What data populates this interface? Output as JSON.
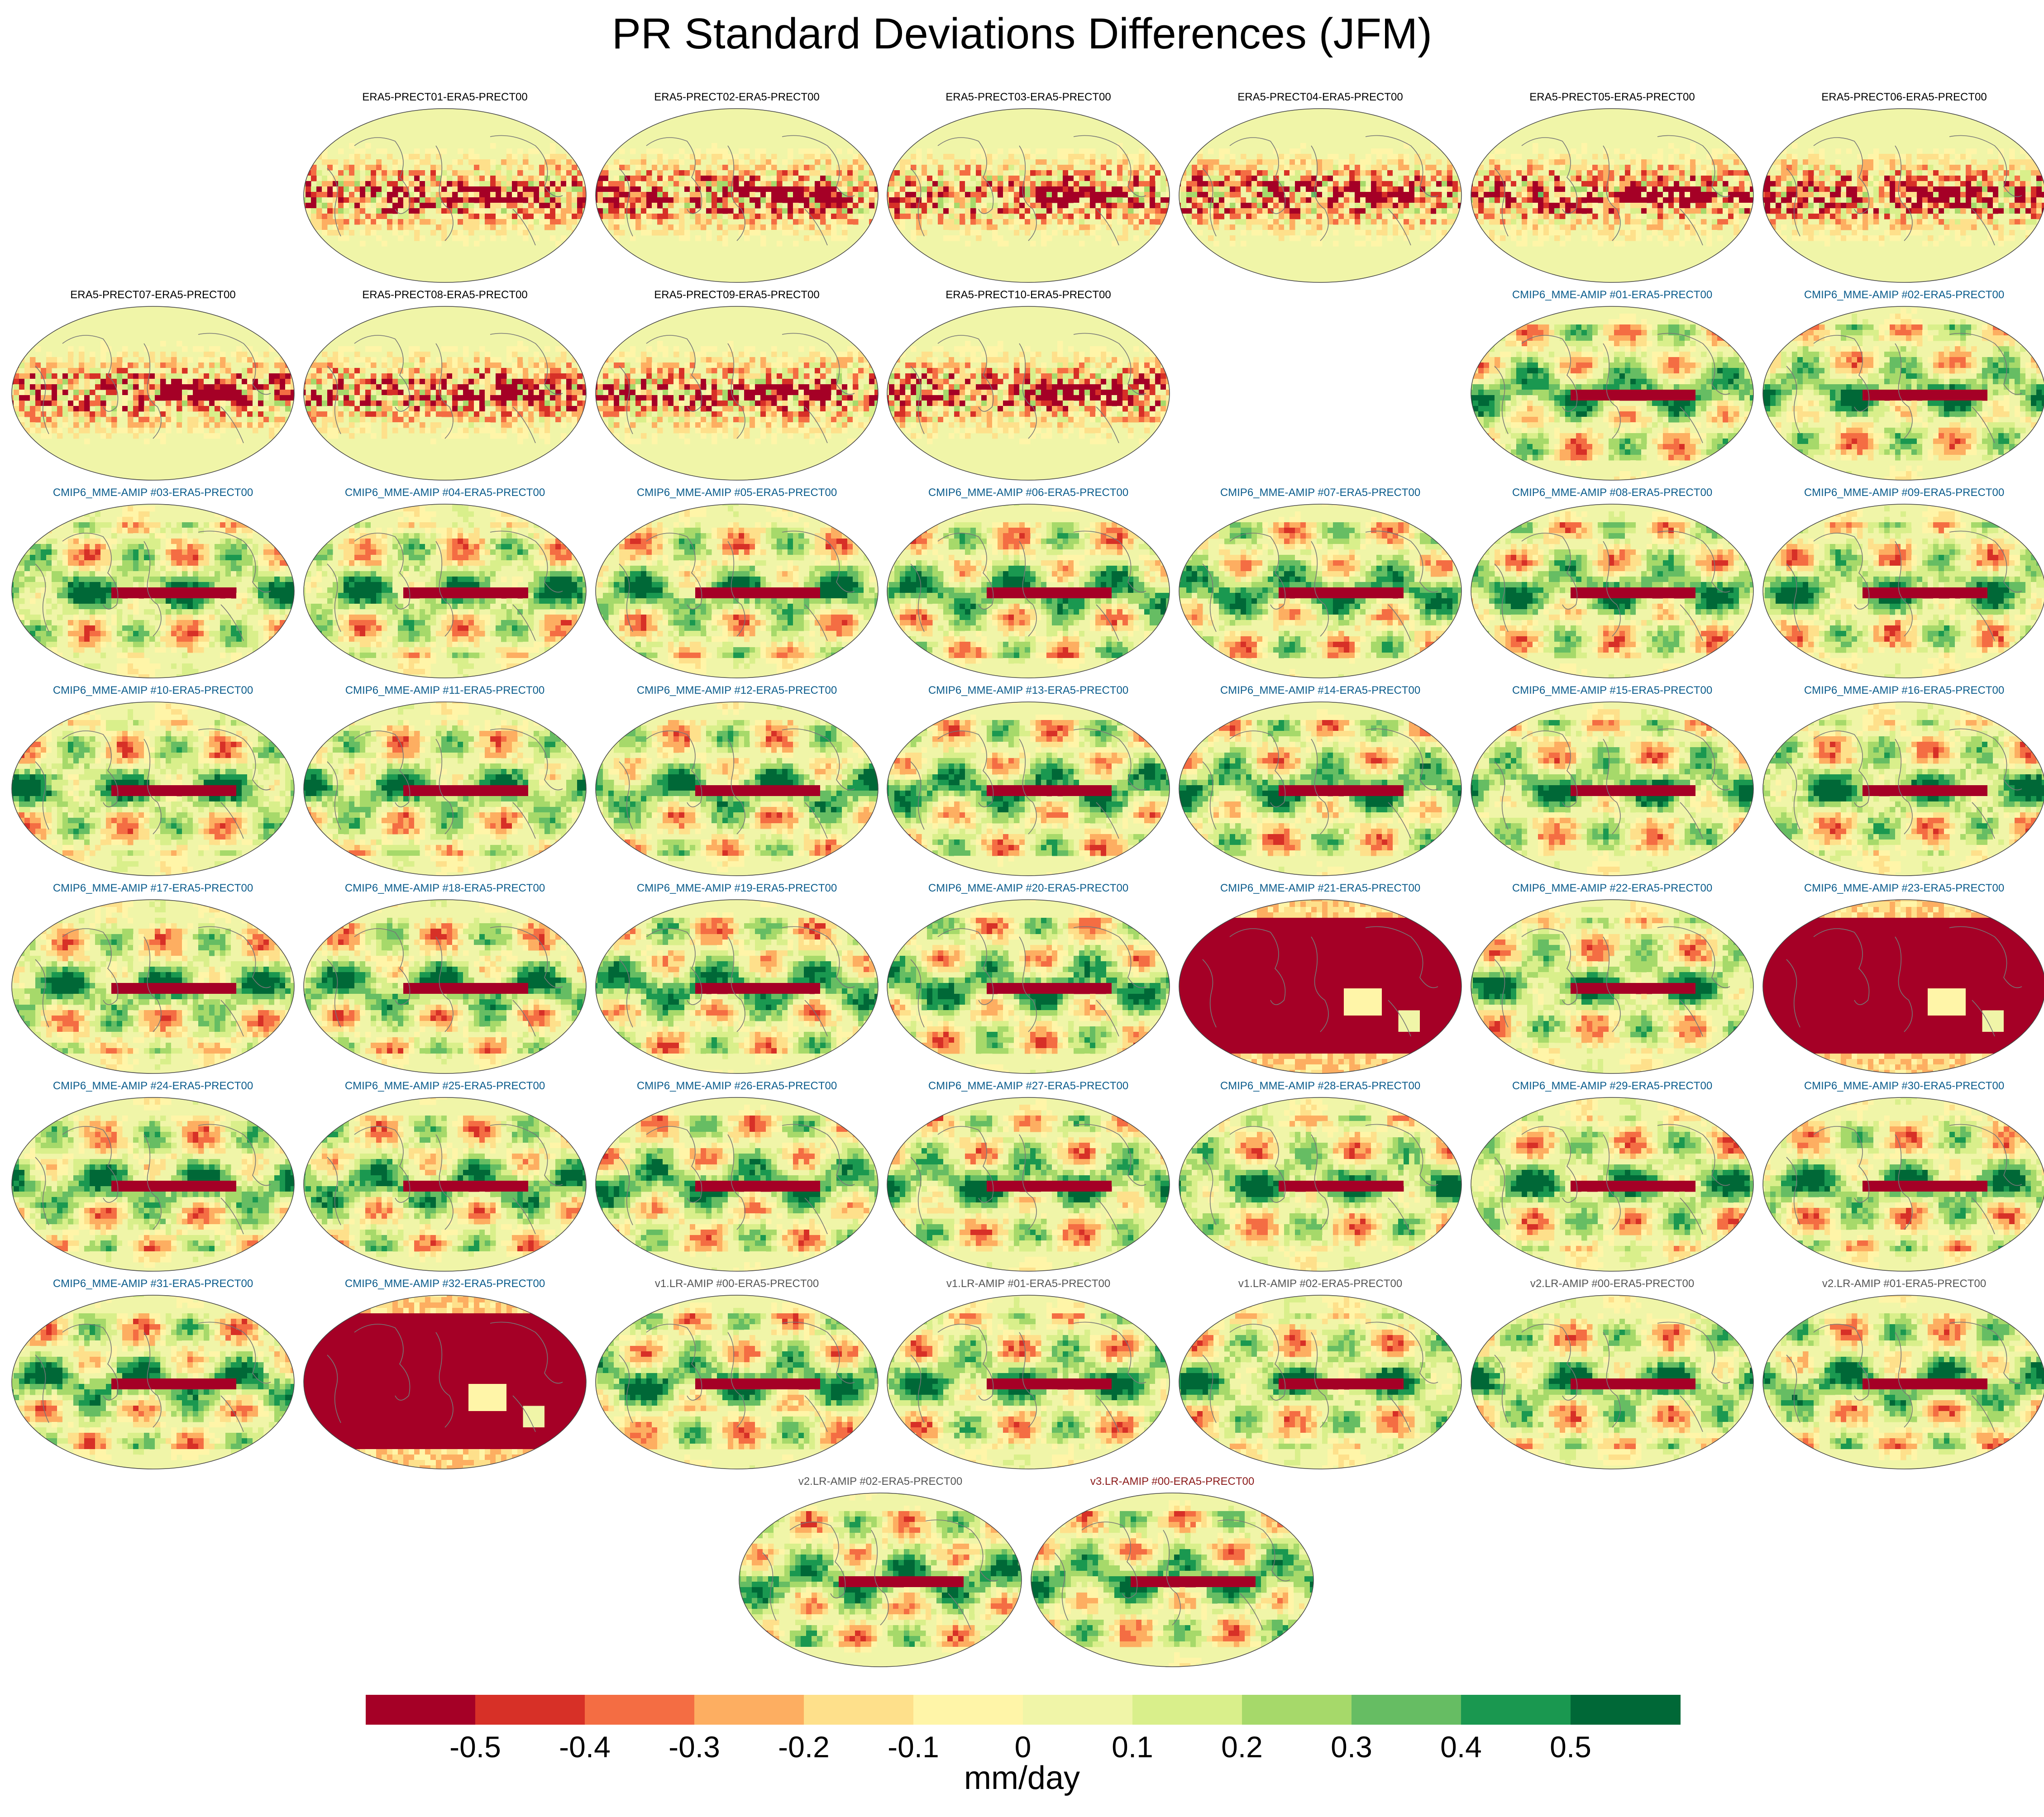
{
  "title": "PR Standard Deviations Differences (JFM)",
  "colors": {
    "era5_title": "#000000",
    "cmip6_title": "#0b5c8c",
    "v1_title": "#555555",
    "v2_title": "#555555",
    "v3_title": "#8b1a1a"
  },
  "chart_data": {
    "type": "map-panels",
    "variable": "PR",
    "season": "JFM",
    "units": "mm/day",
    "colorbar": {
      "levels": [
        -0.5,
        -0.4,
        -0.3,
        -0.2,
        -0.1,
        0,
        0.1,
        0.2,
        0.3,
        0.4,
        0.5
      ],
      "tick_labels": [
        "-0.5",
        "-0.4",
        "-0.3",
        "-0.2",
        "-0.1",
        "0",
        "0.1",
        "0.2",
        "0.3",
        "0.4",
        "0.5"
      ],
      "colors": [
        "#a50026",
        "#d73027",
        "#f46d43",
        "#fdae61",
        "#fee08b",
        "#fff5a8",
        "#f0f5a8",
        "#d9ef8b",
        "#a6d96a",
        "#66bd63",
        "#1a9850",
        "#006837"
      ],
      "label": "mm/day"
    },
    "panels": [
      {
        "title": "ERA5-PRECT01-ERA5-PRECT00",
        "group": "era5",
        "bias": 0
      },
      {
        "title": "ERA5-PRECT02-ERA5-PRECT00",
        "group": "era5",
        "bias": 0
      },
      {
        "title": "ERA5-PRECT03-ERA5-PRECT00",
        "group": "era5",
        "bias": 0
      },
      {
        "title": "ERA5-PRECT04-ERA5-PRECT00",
        "group": "era5",
        "bias": 0
      },
      {
        "title": "ERA5-PRECT05-ERA5-PRECT00",
        "group": "era5",
        "bias": 0
      },
      {
        "title": "ERA5-PRECT06-ERA5-PRECT00",
        "group": "era5",
        "bias": 0
      },
      {
        "title": "ERA5-PRECT07-ERA5-PRECT00",
        "group": "era5",
        "bias": 0
      },
      {
        "title": "ERA5-PRECT08-ERA5-PRECT00",
        "group": "era5",
        "bias": 0
      },
      {
        "title": "ERA5-PRECT09-ERA5-PRECT00",
        "group": "era5",
        "bias": 0
      },
      {
        "title": "ERA5-PRECT10-ERA5-PRECT00",
        "group": "era5",
        "bias": 0
      },
      {
        "title": "CMIP6_MME-AMIP  #01-ERA5-PRECT00",
        "group": "cmip6",
        "bias": 0
      },
      {
        "title": "CMIP6_MME-AMIP  #02-ERA5-PRECT00",
        "group": "cmip6",
        "bias": 0
      },
      {
        "title": "CMIP6_MME-AMIP  #03-ERA5-PRECT00",
        "group": "cmip6",
        "bias": 0
      },
      {
        "title": "CMIP6_MME-AMIP  #04-ERA5-PRECT00",
        "group": "cmip6",
        "bias": 0
      },
      {
        "title": "CMIP6_MME-AMIP  #05-ERA5-PRECT00",
        "group": "cmip6",
        "bias": 0
      },
      {
        "title": "CMIP6_MME-AMIP  #06-ERA5-PRECT00",
        "group": "cmip6",
        "bias": 0
      },
      {
        "title": "CMIP6_MME-AMIP  #07-ERA5-PRECT00",
        "group": "cmip6",
        "bias": 0
      },
      {
        "title": "CMIP6_MME-AMIP  #08-ERA5-PRECT00",
        "group": "cmip6",
        "bias": 0
      },
      {
        "title": "CMIP6_MME-AMIP  #09-ERA5-PRECT00",
        "group": "cmip6",
        "bias": 0
      },
      {
        "title": "CMIP6_MME-AMIP  #10-ERA5-PRECT00",
        "group": "cmip6",
        "bias": 0
      },
      {
        "title": "CMIP6_MME-AMIP  #11-ERA5-PRECT00",
        "group": "cmip6",
        "bias": 0
      },
      {
        "title": "CMIP6_MME-AMIP  #12-ERA5-PRECT00",
        "group": "cmip6",
        "bias": 0
      },
      {
        "title": "CMIP6_MME-AMIP  #13-ERA5-PRECT00",
        "group": "cmip6",
        "bias": 0
      },
      {
        "title": "CMIP6_MME-AMIP  #14-ERA5-PRECT00",
        "group": "cmip6",
        "bias": 0
      },
      {
        "title": "CMIP6_MME-AMIP  #15-ERA5-PRECT00",
        "group": "cmip6",
        "bias": 0
      },
      {
        "title": "CMIP6_MME-AMIP  #16-ERA5-PRECT00",
        "group": "cmip6",
        "bias": 0
      },
      {
        "title": "CMIP6_MME-AMIP  #17-ERA5-PRECT00",
        "group": "cmip6",
        "bias": 0
      },
      {
        "title": "CMIP6_MME-AMIP  #18-ERA5-PRECT00",
        "group": "cmip6",
        "bias": 0
      },
      {
        "title": "CMIP6_MME-AMIP  #19-ERA5-PRECT00",
        "group": "cmip6",
        "bias": 0
      },
      {
        "title": "CMIP6_MME-AMIP  #20-ERA5-PRECT00",
        "group": "cmip6",
        "bias": 0
      },
      {
        "title": "CMIP6_MME-AMIP  #21-ERA5-PRECT00",
        "group": "cmip6",
        "bias": -1
      },
      {
        "title": "CMIP6_MME-AMIP  #22-ERA5-PRECT00",
        "group": "cmip6",
        "bias": 0
      },
      {
        "title": "CMIP6_MME-AMIP  #23-ERA5-PRECT00",
        "group": "cmip6",
        "bias": -1
      },
      {
        "title": "CMIP6_MME-AMIP  #24-ERA5-PRECT00",
        "group": "cmip6",
        "bias": 0
      },
      {
        "title": "CMIP6_MME-AMIP  #25-ERA5-PRECT00",
        "group": "cmip6",
        "bias": 0
      },
      {
        "title": "CMIP6_MME-AMIP  #26-ERA5-PRECT00",
        "group": "cmip6",
        "bias": 0
      },
      {
        "title": "CMIP6_MME-AMIP  #27-ERA5-PRECT00",
        "group": "cmip6",
        "bias": 0
      },
      {
        "title": "CMIP6_MME-AMIP  #28-ERA5-PRECT00",
        "group": "cmip6",
        "bias": 0
      },
      {
        "title": "CMIP6_MME-AMIP  #29-ERA5-PRECT00",
        "group": "cmip6",
        "bias": 0
      },
      {
        "title": "CMIP6_MME-AMIP  #30-ERA5-PRECT00",
        "group": "cmip6",
        "bias": 0
      },
      {
        "title": "CMIP6_MME-AMIP  #31-ERA5-PRECT00",
        "group": "cmip6",
        "bias": 0
      },
      {
        "title": "CMIP6_MME-AMIP  #32-ERA5-PRECT00",
        "group": "cmip6",
        "bias": -1
      },
      {
        "title": "v1.LR-AMIP  #00-ERA5-PRECT00",
        "group": "v1",
        "bias": 0
      },
      {
        "title": "v1.LR-AMIP  #01-ERA5-PRECT00",
        "group": "v1",
        "bias": 0
      },
      {
        "title": "v1.LR-AMIP  #02-ERA5-PRECT00",
        "group": "v1",
        "bias": 0
      },
      {
        "title": "v2.LR-AMIP  #00-ERA5-PRECT00",
        "group": "v2",
        "bias": 0
      },
      {
        "title": "v2.LR-AMIP  #01-ERA5-PRECT00",
        "group": "v2",
        "bias": 0
      },
      {
        "title": "v2.LR-AMIP  #02-ERA5-PRECT00",
        "group": "v2",
        "bias": 0
      },
      {
        "title": "v3.LR-AMIP  #00-ERA5-PRECT00",
        "group": "v3",
        "bias": 0
      }
    ]
  }
}
